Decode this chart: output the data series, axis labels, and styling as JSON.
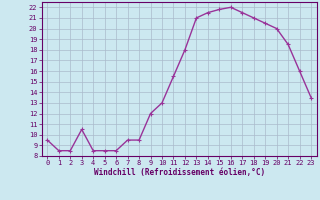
{
  "x": [
    0,
    1,
    2,
    3,
    4,
    5,
    6,
    7,
    8,
    9,
    10,
    11,
    12,
    13,
    14,
    15,
    16,
    17,
    18,
    19,
    20,
    21,
    22,
    23
  ],
  "y": [
    9.5,
    8.5,
    8.5,
    10.5,
    8.5,
    8.5,
    8.5,
    9.5,
    9.5,
    12.0,
    13.0,
    15.5,
    18.0,
    21.0,
    21.5,
    21.8,
    22.0,
    21.5,
    21.0,
    20.5,
    20.0,
    18.5,
    16.0,
    13.5
  ],
  "line_color": "#993399",
  "marker": "+",
  "marker_size": 3,
  "linewidth": 1.0,
  "xlabel": "Windchill (Refroidissement éolien,°C)",
  "xlim": [
    -0.5,
    23.5
  ],
  "ylim": [
    8,
    22.5
  ],
  "yticks": [
    8,
    9,
    10,
    11,
    12,
    13,
    14,
    15,
    16,
    17,
    18,
    19,
    20,
    21,
    22
  ],
  "xticks": [
    0,
    1,
    2,
    3,
    4,
    5,
    6,
    7,
    8,
    9,
    10,
    11,
    12,
    13,
    14,
    15,
    16,
    17,
    18,
    19,
    20,
    21,
    22,
    23
  ],
  "bg_color": "#cce8f0",
  "grid_color": "#aabbcc",
  "label_color": "#660066",
  "tick_color": "#660066",
  "border_color": "#660066",
  "tick_fontsize": 5.0,
  "xlabel_fontsize": 5.5
}
